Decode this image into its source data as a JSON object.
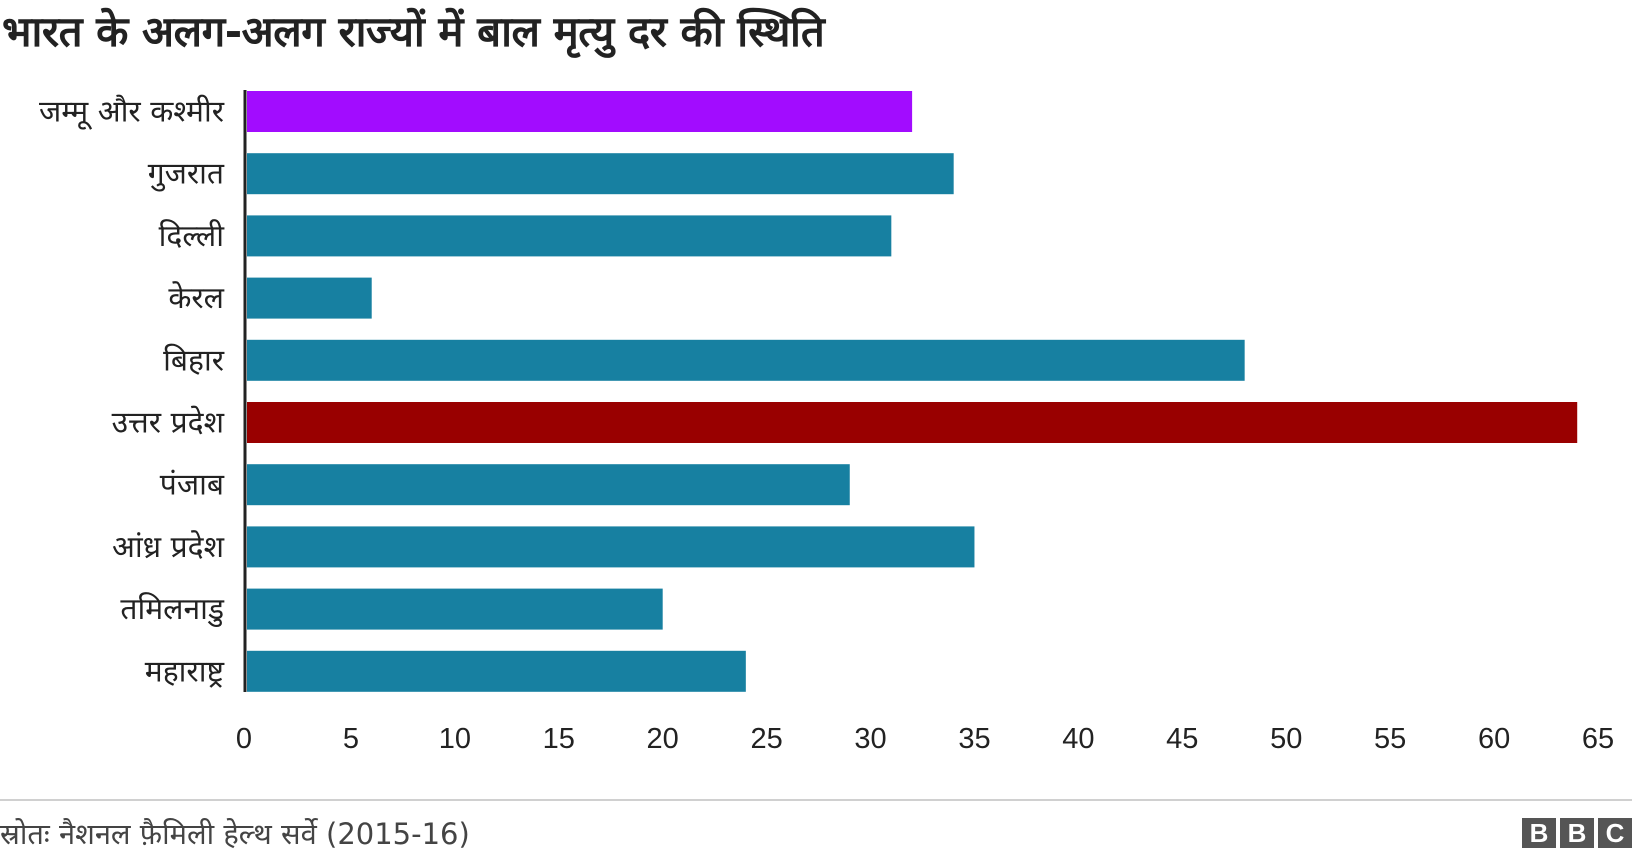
{
  "title": "भारत के अलग-अलग राज्यों में बाल मृत्यु दर की स्थिति",
  "source": "स्रोतः नैशनल फ़ैमिली हेल्थ सर्वे (2015-16)",
  "logo": [
    "B",
    "B",
    "C"
  ],
  "colors": {
    "default": "#1780a1",
    "highlight_low": "#a20cff",
    "highlight_high": "#990000"
  },
  "chart_data": {
    "type": "bar",
    "orientation": "horizontal",
    "title": "भारत के अलग-अलग राज्यों में बाल मृत्यु दर की स्थिति",
    "categories": [
      "जम्मू और कश्मीर",
      "गुजरात",
      "दिल्ली",
      "केरल",
      "बिहार",
      "उत्तर प्रदेश",
      "पंजाब",
      "आंध्र प्रदेश",
      "तमिलनाडु",
      "महाराष्ट्र"
    ],
    "values": [
      32,
      34,
      31,
      6,
      48,
      64,
      29,
      35,
      20,
      24
    ],
    "bar_colors": [
      "#a20cff",
      "#1780a1",
      "#1780a1",
      "#1780a1",
      "#1780a1",
      "#990000",
      "#1780a1",
      "#1780a1",
      "#1780a1",
      "#1780a1"
    ],
    "xlim": [
      0,
      65
    ],
    "xticks": [
      0,
      5,
      10,
      15,
      20,
      25,
      30,
      35,
      40,
      45,
      50,
      55,
      60,
      65
    ],
    "xlabel": "",
    "ylabel": "",
    "grid": false,
    "legend": false
  }
}
